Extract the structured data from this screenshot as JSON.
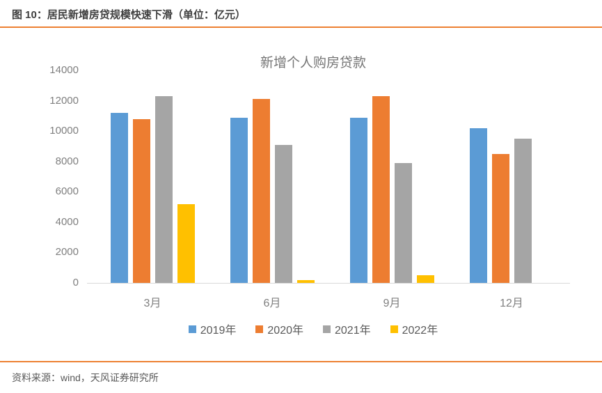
{
  "header": {
    "title": "图 10：居民新增房贷规模快速下滑（单位：亿元）"
  },
  "footer": {
    "source": "资料来源：wind，天风证券研究所"
  },
  "colors": {
    "accent_orange": "#ED8032",
    "axis_line": "#D9D9D9",
    "tick_text": "#7F7F7F",
    "series_blue": "#5B9BD5",
    "series_orange": "#ED7D31",
    "series_gray": "#A5A5A5",
    "series_yellow": "#FFC000"
  },
  "chart_data": {
    "type": "bar",
    "title": "新增个人购房贷款",
    "categories": [
      "3月",
      "6月",
      "9月",
      "12月"
    ],
    "series": [
      {
        "name": "2019年",
        "color": "#5B9BD5",
        "values": [
          11200,
          10900,
          10900,
          10200
        ]
      },
      {
        "name": "2020年",
        "color": "#ED7D31",
        "values": [
          10800,
          12100,
          12300,
          8500
        ]
      },
      {
        "name": "2021年",
        "color": "#A5A5A5",
        "values": [
          12300,
          9100,
          7900,
          9500
        ]
      },
      {
        "name": "2022年",
        "color": "#FFC000",
        "values": [
          5200,
          200,
          500,
          null
        ]
      }
    ],
    "xlabel": "",
    "ylabel": "",
    "ylim": [
      0,
      14000
    ],
    "ytick_step": 2000,
    "grid": false,
    "legend_position": "bottom"
  }
}
